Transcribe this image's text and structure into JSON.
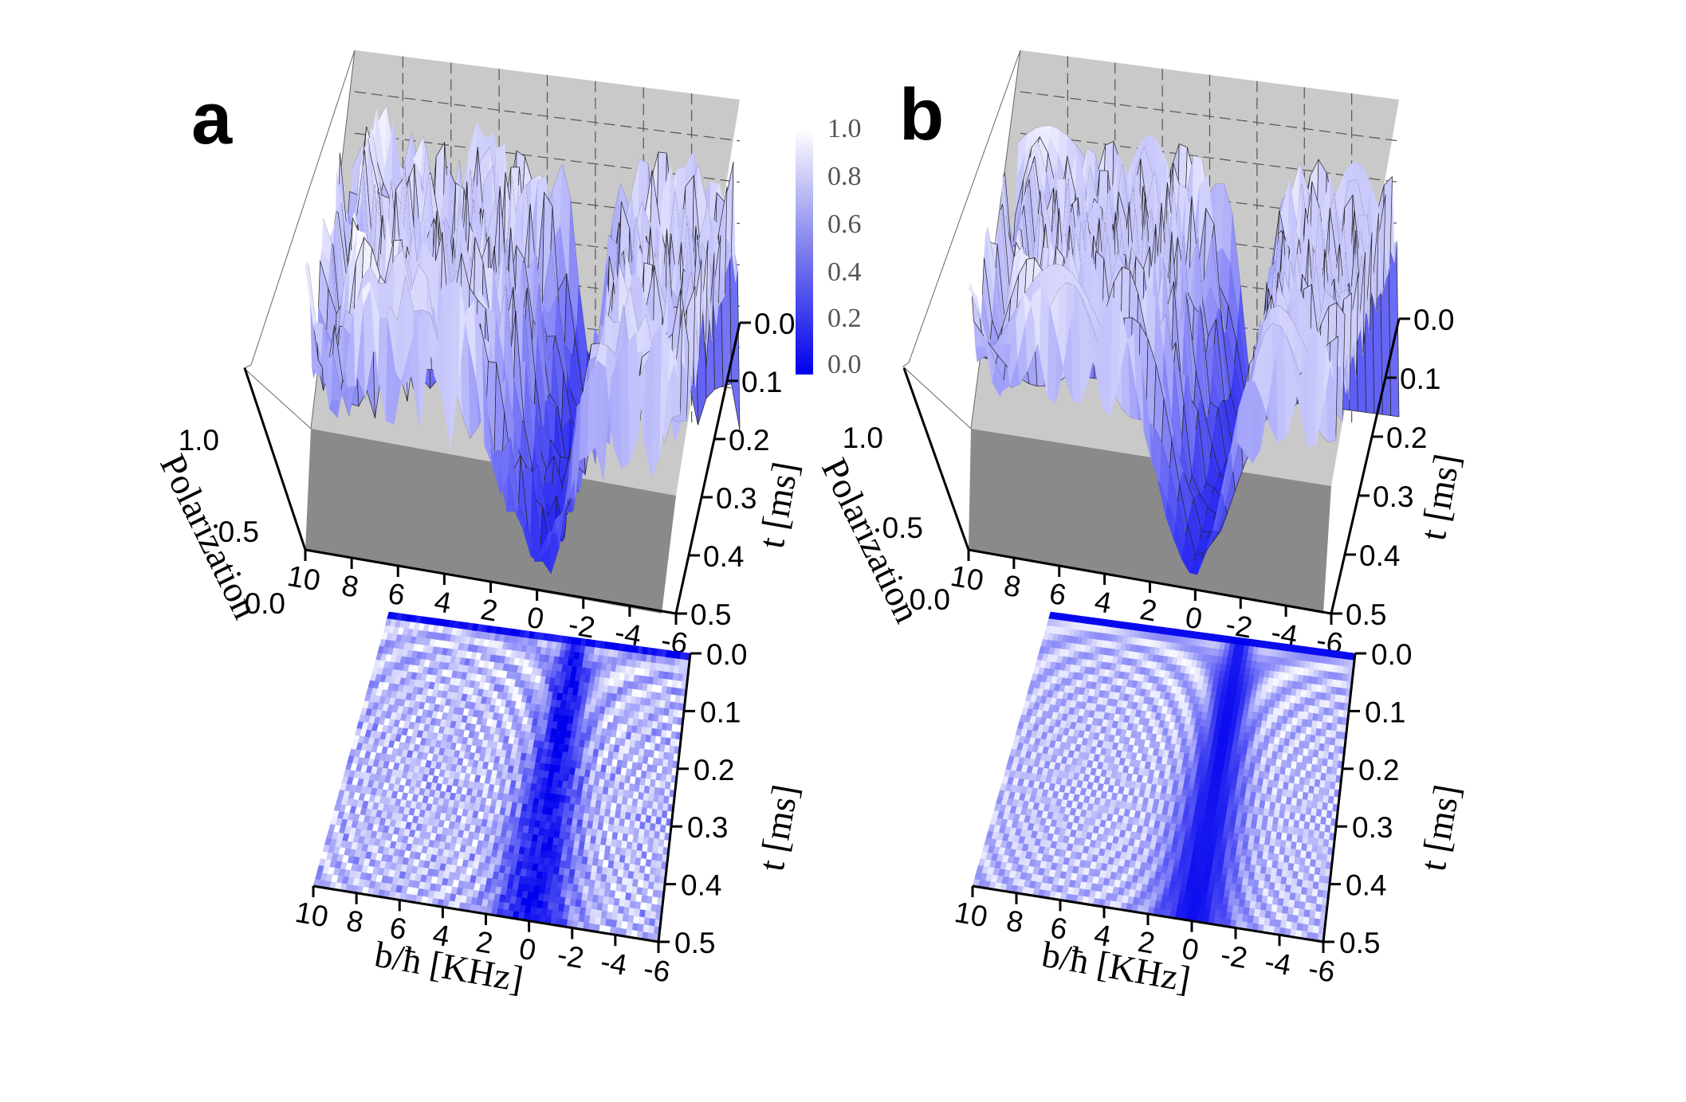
{
  "colors": {
    "high": "#ffffff",
    "low": "#0000ee",
    "floor": "#b9b9b9",
    "floor_dark": "#7a7a7a"
  },
  "colorbar": {
    "ticks": [
      "1.0",
      "0.8",
      "0.6",
      "0.4",
      "0.2",
      "0.0"
    ]
  },
  "chart_data": [
    {
      "panel": "a",
      "type": "surface3d",
      "x_label": "b/ħ [KHz]",
      "x_ticks": [
        "10",
        "8",
        "6",
        "4",
        "2",
        "0",
        "-2",
        "-4",
        "-6"
      ],
      "y_label": "t [ms]",
      "y_ticks": [
        "0.0",
        "0.1",
        "0.2",
        "0.3",
        "0.4",
        "0.5"
      ],
      "z_label": "Polarization",
      "z_ticks": [
        "0.0",
        "0.5",
        "1.0"
      ],
      "x_range": [
        10,
        -6
      ],
      "y_range": [
        0,
        0.5
      ],
      "z_range": [
        0,
        1
      ],
      "data_note": "experimental",
      "ring_freq": 3.0,
      "noise": 0.12
    },
    {
      "panel": "a",
      "type": "heatmap",
      "x_label": "b/ħ [KHz]",
      "x_ticks": [
        "10",
        "8",
        "6",
        "4",
        "2",
        "0",
        "-2",
        "-4",
        "-6"
      ],
      "y_label": "t [ms]",
      "y_ticks": [
        "0.0",
        "0.1",
        "0.2",
        "0.3",
        "0.4",
        "0.5"
      ],
      "x_range": [
        10,
        -6
      ],
      "y_range": [
        0,
        0.5
      ],
      "colorscale": [
        0,
        1
      ],
      "ring_freq": 3.0,
      "noise": 0.12
    },
    {
      "panel": "b",
      "type": "surface3d",
      "x_label": "b/ħ [KHz]",
      "x_ticks": [
        "10",
        "8",
        "6",
        "4",
        "2",
        "0",
        "-2",
        "-4",
        "-6"
      ],
      "y_label": "t [ms]",
      "y_ticks": [
        "0.0",
        "0.1",
        "0.2",
        "0.3",
        "0.4",
        "0.5"
      ],
      "z_label": "Polarization",
      "z_ticks": [
        "0.0",
        "0.5",
        "1.0"
      ],
      "x_range": [
        10,
        -6
      ],
      "y_range": [
        0,
        0.5
      ],
      "z_range": [
        0,
        1
      ],
      "ring_freq": 3.0,
      "noise": 0.0
    },
    {
      "panel": "b",
      "type": "heatmap",
      "x_label": "b/ħ [KHz]",
      "x_ticks": [
        "10",
        "8",
        "6",
        "4",
        "2",
        "0",
        "-2",
        "-4",
        "-6"
      ],
      "y_label": "t [ms]",
      "y_ticks": [
        "0.0",
        "0.1",
        "0.2",
        "0.3",
        "0.4",
        "0.5"
      ],
      "x_range": [
        10,
        -6
      ],
      "y_range": [
        0,
        0.5
      ],
      "colorscale": [
        0,
        1
      ],
      "ring_freq": 3.0,
      "noise": 0.0
    }
  ],
  "labels": {
    "panel_a": "a",
    "panel_b": "b"
  }
}
